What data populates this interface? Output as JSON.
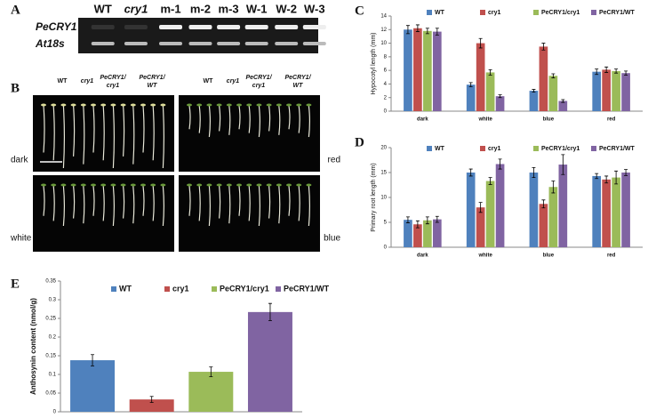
{
  "panel_labels": [
    "A",
    "B",
    "C",
    "D",
    "E"
  ],
  "gel": {
    "columns": [
      "WT",
      "cry1",
      "m-1",
      "m-2",
      "m-3",
      "W-1",
      "W-2",
      "W-3"
    ],
    "rows": [
      "PeCRY1",
      "At18s"
    ]
  },
  "seedlings": {
    "columns": [
      [
        "WT"
      ],
      [
        "cry1"
      ],
      [
        "PeCRY1/",
        "cry1"
      ],
      [
        "PeCRY1/",
        "WT"
      ]
    ],
    "conditions": [
      "dark",
      "red",
      "white",
      "blue"
    ]
  },
  "chart_data": [
    {
      "type": "bar",
      "ylabel": "Hypocotyl length (mm)",
      "categories": [
        "dark",
        "white",
        "blue",
        "red"
      ],
      "ylim": [
        0,
        14
      ],
      "yticks": [
        0,
        2,
        4,
        6,
        8,
        10,
        12,
        14
      ],
      "series": [
        {
          "name": "WT",
          "color": "#4f81bd",
          "values": [
            12,
            3.9,
            3,
            5.8
          ],
          "errors": [
            0.6,
            0.3,
            0.2,
            0.4
          ]
        },
        {
          "name": "cry1",
          "color": "#c0504d",
          "values": [
            12.2,
            10,
            9.5,
            6.1
          ],
          "errors": [
            0.5,
            0.7,
            0.5,
            0.4
          ]
        },
        {
          "name": "PeCRY1/cry1",
          "color": "#9bbb59",
          "values": [
            11.8,
            5.7,
            5.2,
            5.9
          ],
          "errors": [
            0.4,
            0.4,
            0.3,
            0.3
          ]
        },
        {
          "name": "PeCRY1/WT",
          "color": "#8064a2",
          "values": [
            11.7,
            2.2,
            1.5,
            5.6
          ],
          "errors": [
            0.5,
            0.2,
            0.2,
            0.3
          ]
        }
      ]
    },
    {
      "type": "bar",
      "ylabel": "Primary root length (mm)",
      "categories": [
        "dark",
        "white",
        "blue",
        "red"
      ],
      "ylim": [
        0,
        20
      ],
      "yticks": [
        0,
        5,
        10,
        15,
        20
      ],
      "series": [
        {
          "name": "WT",
          "color": "#4f81bd",
          "values": [
            5.5,
            15,
            15,
            14.3
          ],
          "errors": [
            0.6,
            0.7,
            1,
            0.5
          ]
        },
        {
          "name": "cry1",
          "color": "#c0504d",
          "values": [
            4.6,
            8,
            8.7,
            13.6
          ],
          "errors": [
            0.7,
            1,
            0.8,
            0.7
          ]
        },
        {
          "name": "PeCRY1/cry1",
          "color": "#9bbb59",
          "values": [
            5.4,
            13.3,
            12.1,
            14
          ],
          "errors": [
            0.7,
            0.7,
            1.2,
            1.3
          ]
        },
        {
          "name": "PeCRY1/WT",
          "color": "#8064a2",
          "values": [
            5.6,
            16.7,
            16.6,
            15
          ],
          "errors": [
            0.6,
            1,
            2,
            0.6
          ]
        }
      ]
    },
    {
      "type": "bar",
      "ylabel": "Anthosynin content (nmol/g)",
      "categories": [
        null
      ],
      "ylim": [
        0,
        0.35
      ],
      "yticks": [
        0,
        0.05,
        0.1,
        0.15,
        0.2,
        0.25,
        0.3,
        0.35
      ],
      "series": [
        {
          "name": "WT",
          "color": "#4f81bd",
          "values": [
            0.138
          ],
          "errors": [
            0.015
          ]
        },
        {
          "name": "cry1",
          "color": "#c0504d",
          "values": [
            0.033
          ],
          "errors": [
            0.008
          ]
        },
        {
          "name": "PeCRY1/cry1",
          "color": "#9bbb59",
          "values": [
            0.107
          ],
          "errors": [
            0.013
          ]
        },
        {
          "name": "PeCRY1/WT",
          "color": "#8064a2",
          "values": [
            0.267
          ],
          "errors": [
            0.023
          ]
        }
      ]
    }
  ]
}
